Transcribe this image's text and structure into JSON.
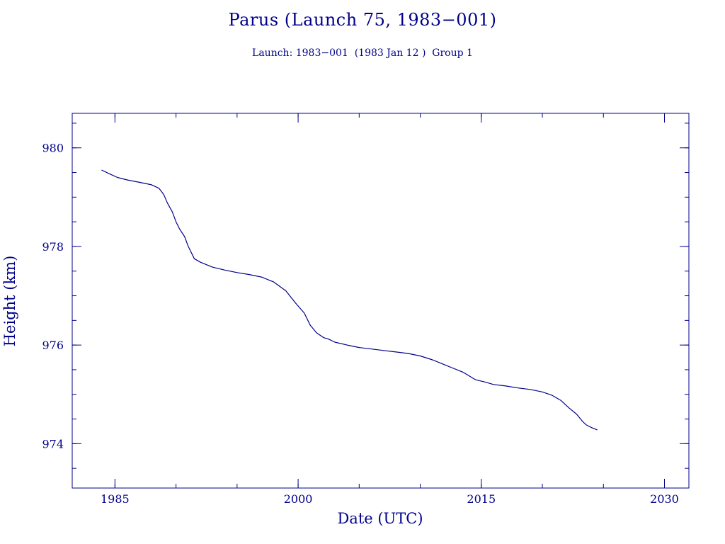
{
  "chart_data": {
    "type": "line",
    "title": "Parus (Launch 75, 1983−001)",
    "subtitle": "Launch: 1983−001  (1983 Jan 12 )  Group 1",
    "xlabel": "Date (UTC)",
    "ylabel": "Height (km)",
    "xlim": [
      1981.5,
      2032
    ],
    "ylim": [
      973.1,
      980.7
    ],
    "xticks": [
      1985,
      2000,
      2015,
      2030
    ],
    "xtick_labels": [
      "1985",
      "2000",
      "2015",
      "2030"
    ],
    "yticks": [
      974,
      976,
      978,
      980
    ],
    "ytick_labels": [
      "974",
      "976",
      "978",
      "980"
    ],
    "grid": false,
    "line_color": "#00008b",
    "series": [
      {
        "x": [
          1983.9,
          1984.5,
          1985.2,
          1986.0,
          1987.0,
          1988.0,
          1988.6,
          1989.0,
          1989.3,
          1989.7,
          1990.0,
          1990.3,
          1990.7,
          1991.0,
          1991.5,
          1992.0,
          1993.0,
          1994.0,
          1995.0,
          1996.0,
          1997.0,
          1998.0,
          1999.0,
          1999.8,
          2000.5,
          2001.0,
          2001.5,
          2001.8,
          2002.1,
          2002.5,
          2003.0,
          2004.0,
          2005.0,
          2006.0,
          2007.0,
          2008.0,
          2009.0,
          2010.0,
          2011.0,
          2011.8,
          2012.5,
          2013.5,
          2014.5,
          2015.3,
          2016.0,
          2017.0,
          2018.0,
          2019.0,
          2020.0,
          2020.8,
          2021.5,
          2022.2,
          2022.8,
          2023.3,
          2023.6,
          2024.0,
          2024.5
        ],
        "y": [
          979.55,
          979.48,
          979.4,
          979.35,
          979.3,
          979.25,
          979.18,
          979.05,
          978.88,
          978.7,
          978.5,
          978.35,
          978.2,
          978.0,
          977.75,
          977.68,
          977.58,
          977.52,
          977.47,
          977.43,
          977.38,
          977.28,
          977.1,
          976.85,
          976.65,
          976.4,
          976.25,
          976.2,
          976.15,
          976.12,
          976.06,
          976.0,
          975.95,
          975.92,
          975.89,
          975.86,
          975.83,
          975.78,
          975.7,
          975.62,
          975.55,
          975.45,
          975.3,
          975.25,
          975.2,
          975.17,
          975.13,
          975.1,
          975.05,
          974.98,
          974.88,
          974.72,
          974.6,
          974.45,
          974.38,
          974.33,
          974.28
        ]
      }
    ]
  }
}
